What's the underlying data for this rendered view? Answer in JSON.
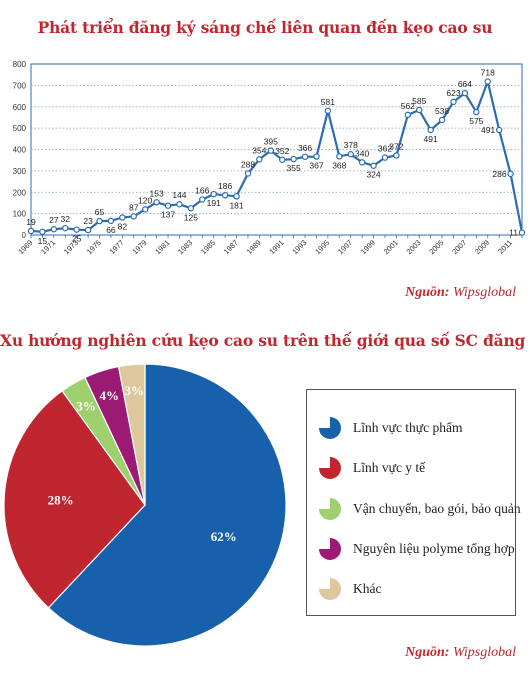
{
  "line_title": "Phát triển đăng ký sáng chế liên quan đến kẹo cao su",
  "pie_title": "Xu hướng nghiên cứu kẹo cao su trên thế giới qua số SC đăng ký",
  "source_key": "Nguồn:",
  "source_value": "Wipsglobal",
  "colors": {
    "title": "#c3262e",
    "line": "#2c6cb0",
    "pie_food": "#1761ac",
    "pie_medical": "#c0262f",
    "pie_transport": "#9fd06f",
    "pie_polymer": "#9b1b74",
    "pie_other": "#dcc89c"
  },
  "chart_data": [
    {
      "type": "line",
      "title": "Phát triển đăng ký sáng chế liên quan đến kẹo cao su",
      "ylim": [
        0,
        800
      ],
      "yticks": [
        0,
        100,
        200,
        300,
        400,
        500,
        600,
        700,
        800
      ],
      "xlim": [
        1969,
        2012
      ],
      "xticks": [
        1969,
        1971,
        1973,
        1975,
        1977,
        1979,
        1981,
        1983,
        1985,
        1987,
        1989,
        1991,
        1993,
        1995,
        1997,
        1999,
        2001,
        2003,
        2005,
        2007,
        2009,
        2011
      ],
      "grid": "horizontal dotted",
      "x": [
        1969,
        1970,
        1971,
        1972,
        1973,
        1974,
        1975,
        1976,
        1977,
        1978,
        1979,
        1980,
        1981,
        1982,
        1983,
        1984,
        1985,
        1986,
        1987,
        1988,
        1989,
        1990,
        1991,
        1992,
        1993,
        1994,
        1995,
        1996,
        1997,
        1998,
        1999,
        2000,
        2001,
        2002,
        2003,
        2004,
        2005,
        2006,
        2007,
        2008,
        2009,
        2010,
        2011,
        2012
      ],
      "values": [
        19,
        15,
        27,
        32,
        25,
        23,
        65,
        66,
        82,
        87,
        120,
        153,
        137,
        144,
        125,
        166,
        191,
        186,
        181,
        288,
        354,
        395,
        352,
        355,
        366,
        367,
        581,
        368,
        378,
        340,
        324,
        362,
        372,
        562,
        585,
        491,
        538,
        623,
        664,
        575,
        718,
        491,
        286,
        11
      ],
      "data_labels": [
        "19",
        "15",
        "27",
        "32",
        "25",
        "23",
        "65",
        "66",
        "82",
        "87",
        "120",
        "153",
        "137",
        "144",
        "125",
        "166",
        "191",
        "186",
        "181",
        "288",
        "354",
        "395",
        "352",
        "355",
        "366",
        "367",
        "581",
        "368",
        "378",
        "340",
        "324",
        "362",
        "372",
        "562",
        "585",
        "491",
        "538",
        "623",
        "664",
        "575",
        "718",
        "491",
        "286",
        "11"
      ]
    },
    {
      "type": "pie",
      "title": "Xu hướng nghiên cứu kẹo cao su trên thế giới qua số SC đăng ký",
      "legend_position": "right",
      "slices": [
        {
          "label": "Lĩnh vực thực phẩm",
          "value": 62,
          "display": "62%",
          "color": "#1761ac"
        },
        {
          "label": "Lĩnh vực y tế",
          "value": 28,
          "display": "28%",
          "color": "#c0262f"
        },
        {
          "label": "Vận chuyển, bao gói, bảo quản",
          "value": 3,
          "display": "3%",
          "color": "#9fd06f"
        },
        {
          "label": "Nguyên liệu polyme tổng hợp",
          "value": 4,
          "display": "4%",
          "color": "#9b1b74"
        },
        {
          "label": "Khác",
          "value": 3,
          "display": "3%",
          "color": "#dcc89c"
        }
      ]
    }
  ]
}
